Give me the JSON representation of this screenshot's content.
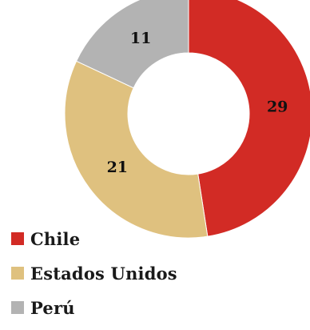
{
  "chart_data": {
    "type": "pie",
    "variant": "donut",
    "categories": [
      "Chile",
      "Estados Unidos",
      "Perú"
    ],
    "values": [
      29,
      21,
      11
    ],
    "colors": [
      "#d22b25",
      "#dfc17f",
      "#b3b3b3"
    ],
    "title": "",
    "legend": "bottom-left",
    "data_labels": true
  },
  "legend": {
    "items": [
      {
        "label": "Chile",
        "color": "#d22b25"
      },
      {
        "label": "Estados Unidos",
        "color": "#dfc17f"
      },
      {
        "label": "Perú",
        "color": "#b3b3b3"
      }
    ]
  }
}
